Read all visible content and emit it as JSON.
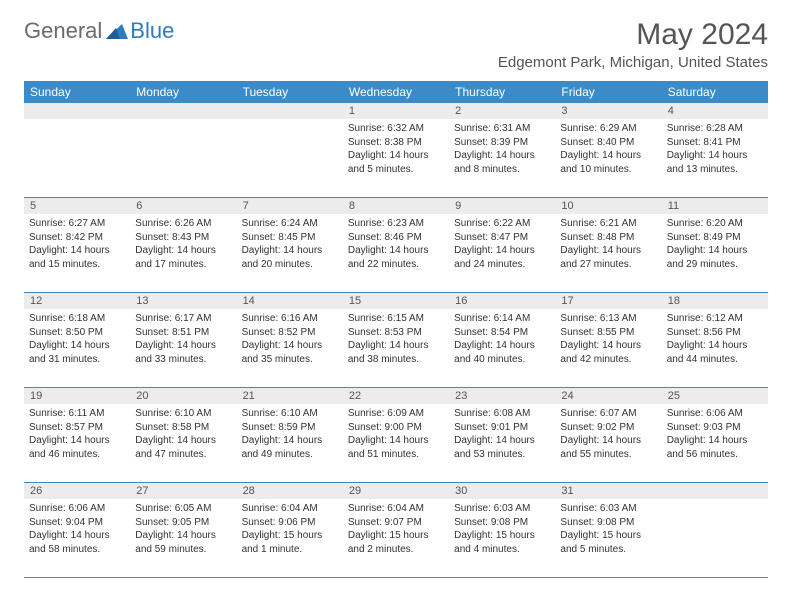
{
  "logo": {
    "general": "General",
    "blue": "Blue"
  },
  "title": "May 2024",
  "location": "Edgemont Park, Michigan, United States",
  "colors": {
    "header_bg": "#3b8bc9",
    "header_text": "#ffffff",
    "daynum_bg": "#ececec",
    "text": "#333333",
    "logo_gray": "#6b6b6b",
    "logo_blue": "#2f7bbf"
  },
  "day_names": [
    "Sunday",
    "Monday",
    "Tuesday",
    "Wednesday",
    "Thursday",
    "Friday",
    "Saturday"
  ],
  "weeks": [
    [
      null,
      null,
      null,
      {
        "n": "1",
        "sr": "6:32 AM",
        "ss": "8:38 PM",
        "dl": "14 hours and 5 minutes."
      },
      {
        "n": "2",
        "sr": "6:31 AM",
        "ss": "8:39 PM",
        "dl": "14 hours and 8 minutes."
      },
      {
        "n": "3",
        "sr": "6:29 AM",
        "ss": "8:40 PM",
        "dl": "14 hours and 10 minutes."
      },
      {
        "n": "4",
        "sr": "6:28 AM",
        "ss": "8:41 PM",
        "dl": "14 hours and 13 minutes."
      }
    ],
    [
      {
        "n": "5",
        "sr": "6:27 AM",
        "ss": "8:42 PM",
        "dl": "14 hours and 15 minutes."
      },
      {
        "n": "6",
        "sr": "6:26 AM",
        "ss": "8:43 PM",
        "dl": "14 hours and 17 minutes."
      },
      {
        "n": "7",
        "sr": "6:24 AM",
        "ss": "8:45 PM",
        "dl": "14 hours and 20 minutes."
      },
      {
        "n": "8",
        "sr": "6:23 AM",
        "ss": "8:46 PM",
        "dl": "14 hours and 22 minutes."
      },
      {
        "n": "9",
        "sr": "6:22 AM",
        "ss": "8:47 PM",
        "dl": "14 hours and 24 minutes."
      },
      {
        "n": "10",
        "sr": "6:21 AM",
        "ss": "8:48 PM",
        "dl": "14 hours and 27 minutes."
      },
      {
        "n": "11",
        "sr": "6:20 AM",
        "ss": "8:49 PM",
        "dl": "14 hours and 29 minutes."
      }
    ],
    [
      {
        "n": "12",
        "sr": "6:18 AM",
        "ss": "8:50 PM",
        "dl": "14 hours and 31 minutes."
      },
      {
        "n": "13",
        "sr": "6:17 AM",
        "ss": "8:51 PM",
        "dl": "14 hours and 33 minutes."
      },
      {
        "n": "14",
        "sr": "6:16 AM",
        "ss": "8:52 PM",
        "dl": "14 hours and 35 minutes."
      },
      {
        "n": "15",
        "sr": "6:15 AM",
        "ss": "8:53 PM",
        "dl": "14 hours and 38 minutes."
      },
      {
        "n": "16",
        "sr": "6:14 AM",
        "ss": "8:54 PM",
        "dl": "14 hours and 40 minutes."
      },
      {
        "n": "17",
        "sr": "6:13 AM",
        "ss": "8:55 PM",
        "dl": "14 hours and 42 minutes."
      },
      {
        "n": "18",
        "sr": "6:12 AM",
        "ss": "8:56 PM",
        "dl": "14 hours and 44 minutes."
      }
    ],
    [
      {
        "n": "19",
        "sr": "6:11 AM",
        "ss": "8:57 PM",
        "dl": "14 hours and 46 minutes."
      },
      {
        "n": "20",
        "sr": "6:10 AM",
        "ss": "8:58 PM",
        "dl": "14 hours and 47 minutes."
      },
      {
        "n": "21",
        "sr": "6:10 AM",
        "ss": "8:59 PM",
        "dl": "14 hours and 49 minutes."
      },
      {
        "n": "22",
        "sr": "6:09 AM",
        "ss": "9:00 PM",
        "dl": "14 hours and 51 minutes."
      },
      {
        "n": "23",
        "sr": "6:08 AM",
        "ss": "9:01 PM",
        "dl": "14 hours and 53 minutes."
      },
      {
        "n": "24",
        "sr": "6:07 AM",
        "ss": "9:02 PM",
        "dl": "14 hours and 55 minutes."
      },
      {
        "n": "25",
        "sr": "6:06 AM",
        "ss": "9:03 PM",
        "dl": "14 hours and 56 minutes."
      }
    ],
    [
      {
        "n": "26",
        "sr": "6:06 AM",
        "ss": "9:04 PM",
        "dl": "14 hours and 58 minutes."
      },
      {
        "n": "27",
        "sr": "6:05 AM",
        "ss": "9:05 PM",
        "dl": "14 hours and 59 minutes."
      },
      {
        "n": "28",
        "sr": "6:04 AM",
        "ss": "9:06 PM",
        "dl": "15 hours and 1 minute."
      },
      {
        "n": "29",
        "sr": "6:04 AM",
        "ss": "9:07 PM",
        "dl": "15 hours and 2 minutes."
      },
      {
        "n": "30",
        "sr": "6:03 AM",
        "ss": "9:08 PM",
        "dl": "15 hours and 4 minutes."
      },
      {
        "n": "31",
        "sr": "6:03 AM",
        "ss": "9:08 PM",
        "dl": "15 hours and 5 minutes."
      },
      null
    ]
  ],
  "labels": {
    "sunrise": "Sunrise: ",
    "sunset": "Sunset: ",
    "daylight": "Daylight: "
  }
}
